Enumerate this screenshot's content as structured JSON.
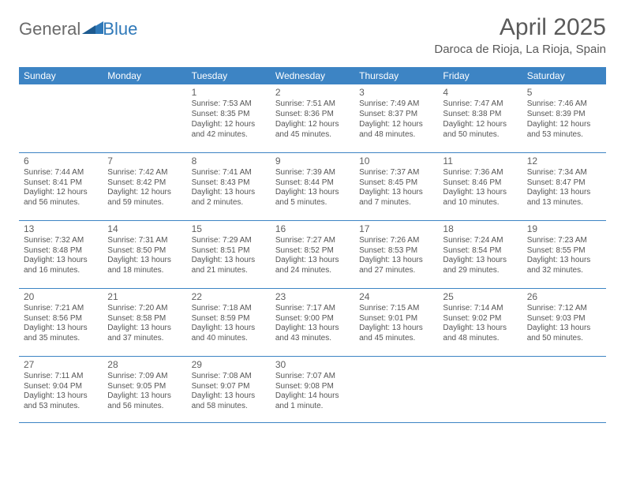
{
  "brand": {
    "general": "General",
    "blue": "Blue"
  },
  "title": "April 2025",
  "location": "Daroca de Rioja, La Rioja, Spain",
  "colors": {
    "header_bg": "#3d84c4",
    "header_text": "#ffffff",
    "row_border": "#3d84c4",
    "body_text": "#555555",
    "title_text": "#5a5a5a",
    "logo_gray": "#6a6a6a",
    "logo_blue": "#2f79b9",
    "page_bg": "#ffffff"
  },
  "weekdays": [
    "Sunday",
    "Monday",
    "Tuesday",
    "Wednesday",
    "Thursday",
    "Friday",
    "Saturday"
  ],
  "weeks": [
    [
      null,
      null,
      {
        "n": "1",
        "rise": "7:53 AM",
        "set": "8:35 PM",
        "dl1": "Daylight: 12 hours",
        "dl2": "and 42 minutes."
      },
      {
        "n": "2",
        "rise": "7:51 AM",
        "set": "8:36 PM",
        "dl1": "Daylight: 12 hours",
        "dl2": "and 45 minutes."
      },
      {
        "n": "3",
        "rise": "7:49 AM",
        "set": "8:37 PM",
        "dl1": "Daylight: 12 hours",
        "dl2": "and 48 minutes."
      },
      {
        "n": "4",
        "rise": "7:47 AM",
        "set": "8:38 PM",
        "dl1": "Daylight: 12 hours",
        "dl2": "and 50 minutes."
      },
      {
        "n": "5",
        "rise": "7:46 AM",
        "set": "8:39 PM",
        "dl1": "Daylight: 12 hours",
        "dl2": "and 53 minutes."
      }
    ],
    [
      {
        "n": "6",
        "rise": "7:44 AM",
        "set": "8:41 PM",
        "dl1": "Daylight: 12 hours",
        "dl2": "and 56 minutes."
      },
      {
        "n": "7",
        "rise": "7:42 AM",
        "set": "8:42 PM",
        "dl1": "Daylight: 12 hours",
        "dl2": "and 59 minutes."
      },
      {
        "n": "8",
        "rise": "7:41 AM",
        "set": "8:43 PM",
        "dl1": "Daylight: 13 hours",
        "dl2": "and 2 minutes."
      },
      {
        "n": "9",
        "rise": "7:39 AM",
        "set": "8:44 PM",
        "dl1": "Daylight: 13 hours",
        "dl2": "and 5 minutes."
      },
      {
        "n": "10",
        "rise": "7:37 AM",
        "set": "8:45 PM",
        "dl1": "Daylight: 13 hours",
        "dl2": "and 7 minutes."
      },
      {
        "n": "11",
        "rise": "7:36 AM",
        "set": "8:46 PM",
        "dl1": "Daylight: 13 hours",
        "dl2": "and 10 minutes."
      },
      {
        "n": "12",
        "rise": "7:34 AM",
        "set": "8:47 PM",
        "dl1": "Daylight: 13 hours",
        "dl2": "and 13 minutes."
      }
    ],
    [
      {
        "n": "13",
        "rise": "7:32 AM",
        "set": "8:48 PM",
        "dl1": "Daylight: 13 hours",
        "dl2": "and 16 minutes."
      },
      {
        "n": "14",
        "rise": "7:31 AM",
        "set": "8:50 PM",
        "dl1": "Daylight: 13 hours",
        "dl2": "and 18 minutes."
      },
      {
        "n": "15",
        "rise": "7:29 AM",
        "set": "8:51 PM",
        "dl1": "Daylight: 13 hours",
        "dl2": "and 21 minutes."
      },
      {
        "n": "16",
        "rise": "7:27 AM",
        "set": "8:52 PM",
        "dl1": "Daylight: 13 hours",
        "dl2": "and 24 minutes."
      },
      {
        "n": "17",
        "rise": "7:26 AM",
        "set": "8:53 PM",
        "dl1": "Daylight: 13 hours",
        "dl2": "and 27 minutes."
      },
      {
        "n": "18",
        "rise": "7:24 AM",
        "set": "8:54 PM",
        "dl1": "Daylight: 13 hours",
        "dl2": "and 29 minutes."
      },
      {
        "n": "19",
        "rise": "7:23 AM",
        "set": "8:55 PM",
        "dl1": "Daylight: 13 hours",
        "dl2": "and 32 minutes."
      }
    ],
    [
      {
        "n": "20",
        "rise": "7:21 AM",
        "set": "8:56 PM",
        "dl1": "Daylight: 13 hours",
        "dl2": "and 35 minutes."
      },
      {
        "n": "21",
        "rise": "7:20 AM",
        "set": "8:58 PM",
        "dl1": "Daylight: 13 hours",
        "dl2": "and 37 minutes."
      },
      {
        "n": "22",
        "rise": "7:18 AM",
        "set": "8:59 PM",
        "dl1": "Daylight: 13 hours",
        "dl2": "and 40 minutes."
      },
      {
        "n": "23",
        "rise": "7:17 AM",
        "set": "9:00 PM",
        "dl1": "Daylight: 13 hours",
        "dl2": "and 43 minutes."
      },
      {
        "n": "24",
        "rise": "7:15 AM",
        "set": "9:01 PM",
        "dl1": "Daylight: 13 hours",
        "dl2": "and 45 minutes."
      },
      {
        "n": "25",
        "rise": "7:14 AM",
        "set": "9:02 PM",
        "dl1": "Daylight: 13 hours",
        "dl2": "and 48 minutes."
      },
      {
        "n": "26",
        "rise": "7:12 AM",
        "set": "9:03 PM",
        "dl1": "Daylight: 13 hours",
        "dl2": "and 50 minutes."
      }
    ],
    [
      {
        "n": "27",
        "rise": "7:11 AM",
        "set": "9:04 PM",
        "dl1": "Daylight: 13 hours",
        "dl2": "and 53 minutes."
      },
      {
        "n": "28",
        "rise": "7:09 AM",
        "set": "9:05 PM",
        "dl1": "Daylight: 13 hours",
        "dl2": "and 56 minutes."
      },
      {
        "n": "29",
        "rise": "7:08 AM",
        "set": "9:07 PM",
        "dl1": "Daylight: 13 hours",
        "dl2": "and 58 minutes."
      },
      {
        "n": "30",
        "rise": "7:07 AM",
        "set": "9:08 PM",
        "dl1": "Daylight: 14 hours",
        "dl2": "and 1 minute."
      },
      null,
      null,
      null
    ]
  ]
}
